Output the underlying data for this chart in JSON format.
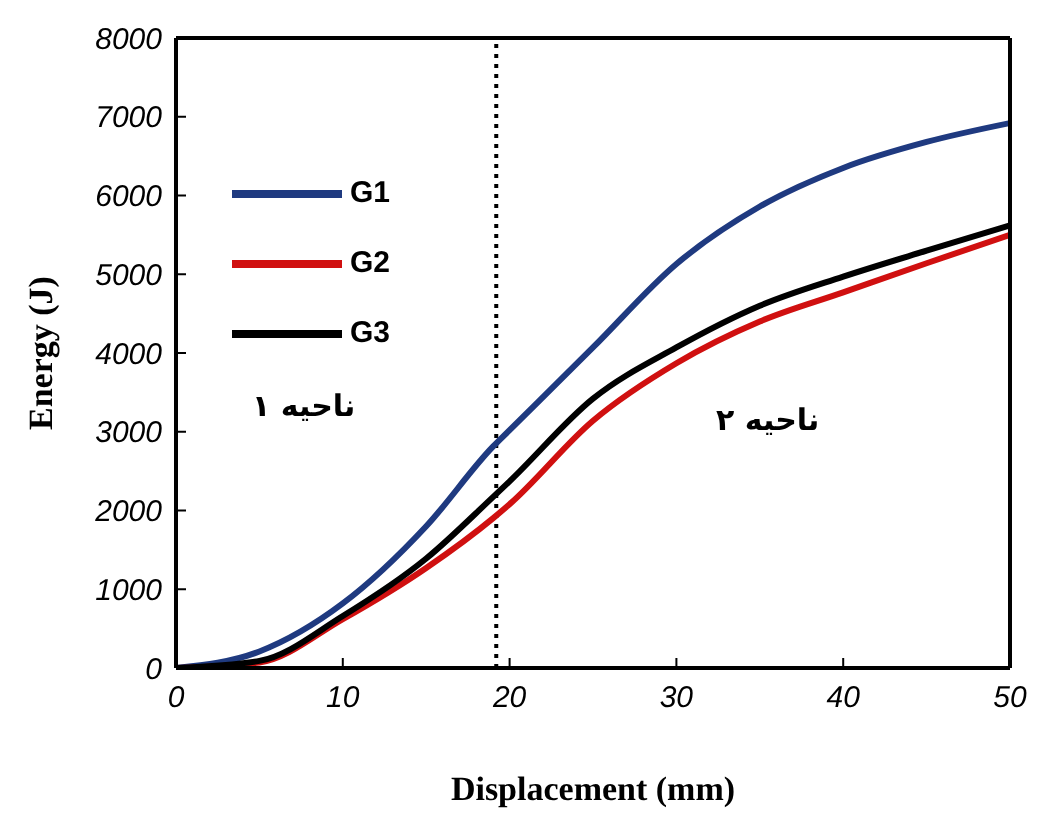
{
  "chart_data": {
    "type": "line",
    "xlabel": "Displacement (mm)",
    "ylabel": "Energy (J)",
    "x": [
      0,
      5,
      10,
      15,
      19,
      20,
      25,
      30,
      35,
      40,
      45,
      50
    ],
    "series": [
      {
        "name": "G1",
        "color": "#1f3a80",
        "values": [
          0,
          210,
          820,
          1800,
          2810,
          3020,
          4070,
          5130,
          5860,
          6350,
          6680,
          6920
        ]
      },
      {
        "name": "G2",
        "color": "#d01010",
        "values": [
          0,
          70,
          620,
          1270,
          1900,
          2080,
          3140,
          3870,
          4400,
          4770,
          5140,
          5500
        ]
      },
      {
        "name": "G3",
        "color": "#000000",
        "values": [
          0,
          90,
          660,
          1390,
          2170,
          2370,
          3420,
          4070,
          4600,
          4970,
          5300,
          5620
        ]
      }
    ],
    "xlim": [
      0,
      50
    ],
    "xticks": [
      0,
      10,
      20,
      30,
      40,
      50
    ],
    "ylim": [
      0,
      8000
    ],
    "yticks": [
      0,
      1000,
      2000,
      3000,
      4000,
      5000,
      6000,
      7000,
      8000
    ],
    "grid": false,
    "legend": "top left",
    "marker": "none",
    "line_style": "solid",
    "ref_lines": [
      {
        "axis": "x",
        "value": 19.2,
        "line_style": "dotted",
        "color": "#000000"
      }
    ],
    "annotations": [
      "ناحیه ۱",
      "ناحیه ۲"
    ]
  }
}
